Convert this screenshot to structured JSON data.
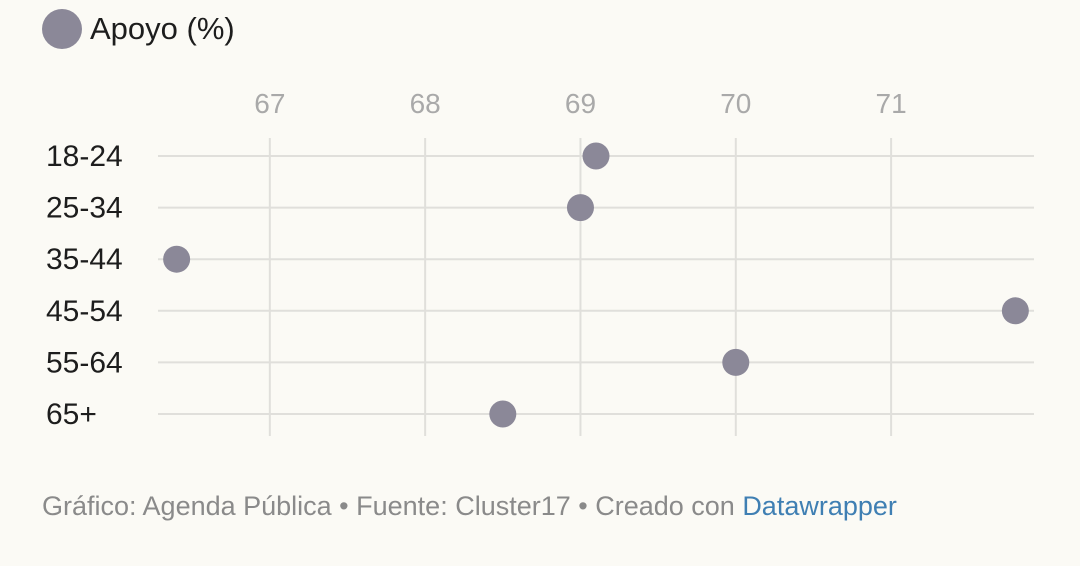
{
  "legend": {
    "label": "Apoyo (%)",
    "color": "#8b8898"
  },
  "chart_data": {
    "type": "scatter",
    "title": "",
    "xlabel": "",
    "ylabel": "",
    "x_ticks": [
      67,
      68,
      69,
      70,
      71
    ],
    "xlim": [
      66.28,
      71.92
    ],
    "grid": true,
    "legend_position": "top-left",
    "categories": [
      "18-24",
      "25-34",
      "35-44",
      "45-54",
      "55-64",
      "65+"
    ],
    "series": [
      {
        "name": "Apoyo (%)",
        "color": "#8b8898",
        "values": [
          69.1,
          69.0,
          66.4,
          71.8,
          70.0,
          68.5
        ]
      }
    ]
  },
  "footer": {
    "text": "Gráfico: Agenda Pública • Fuente: Cluster17 • Creado con ",
    "link": "Datawrapper"
  }
}
